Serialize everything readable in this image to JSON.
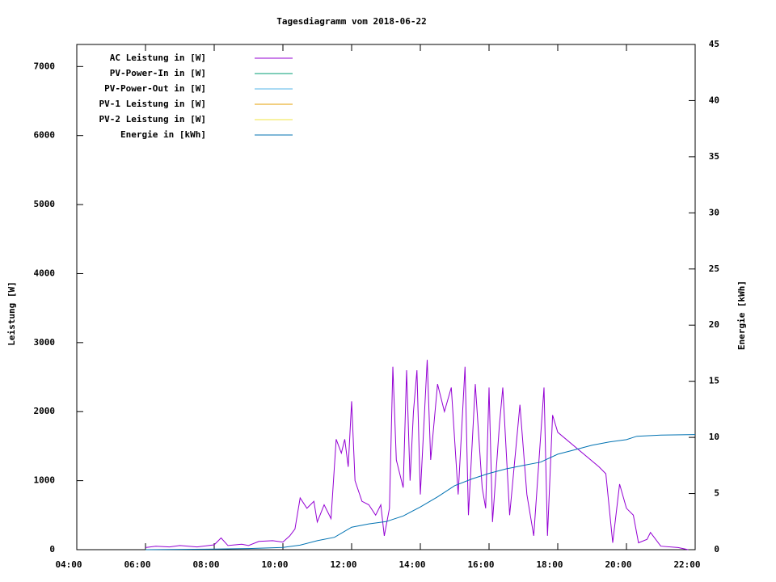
{
  "chart_data": {
    "type": "line",
    "title": "Tagesdiagramm vom 2018-06-22",
    "y_label": "Leistung [W]",
    "y2_label": "Energie [kWh]",
    "xlim": [
      4,
      22
    ],
    "xticks": [
      {
        "value": 4,
        "label": "04:00"
      },
      {
        "value": 6,
        "label": "06:00"
      },
      {
        "value": 8,
        "label": "08:00"
      },
      {
        "value": 10,
        "label": "10:00"
      },
      {
        "value": 12,
        "label": "12:00"
      },
      {
        "value": 14,
        "label": "14:00"
      },
      {
        "value": 16,
        "label": "16:00"
      },
      {
        "value": 18,
        "label": "18:00"
      },
      {
        "value": 20,
        "label": "20:00"
      },
      {
        "value": 22,
        "label": "22:00"
      }
    ],
    "ylim": [
      0,
      7320
    ],
    "yticks": [
      0,
      1000,
      2000,
      3000,
      4000,
      5000,
      6000,
      7000
    ],
    "y2lim": [
      0,
      45
    ],
    "y2ticks": [
      0,
      5,
      10,
      15,
      20,
      25,
      30,
      35,
      40,
      45
    ],
    "legend": "top-left",
    "series": [
      {
        "name": "AC Leistung in [W]",
        "color": "#9400d3",
        "x": [
          6.0,
          6.3,
          6.7,
          7.0,
          7.5,
          8.0,
          8.2,
          8.4,
          8.8,
          9.0,
          9.3,
          9.7,
          10.0,
          10.2,
          10.35,
          10.5,
          10.7,
          10.9,
          11.0,
          11.2,
          11.4,
          11.55,
          11.7,
          11.8,
          11.9,
          12.0,
          12.1,
          12.3,
          12.5,
          12.7,
          12.85,
          12.95,
          13.1,
          13.2,
          13.3,
          13.5,
          13.6,
          13.7,
          13.8,
          13.9,
          14.0,
          14.2,
          14.3,
          14.5,
          14.7,
          14.9,
          15.1,
          15.3,
          15.4,
          15.6,
          15.8,
          15.9,
          16.0,
          16.1,
          16.3,
          16.4,
          16.6,
          16.9,
          17.1,
          17.3,
          17.6,
          17.7,
          17.85,
          18.0,
          19.2,
          19.4,
          19.6,
          19.8,
          20.0,
          20.2,
          20.35,
          20.6,
          20.7,
          21.0,
          21.5,
          21.8
        ],
        "values": [
          30,
          50,
          40,
          60,
          40,
          70,
          170,
          60,
          80,
          60,
          120,
          130,
          110,
          200,
          300,
          750,
          600,
          700,
          400,
          650,
          450,
          1600,
          1400,
          1600,
          1200,
          2150,
          1000,
          700,
          650,
          500,
          650,
          200,
          600,
          2650,
          1300,
          900,
          2600,
          1000,
          2000,
          2600,
          800,
          2750,
          1300,
          2400,
          2000,
          2350,
          800,
          2650,
          500,
          2400,
          900,
          600,
          2350,
          400,
          1800,
          2350,
          500,
          2100,
          800,
          200,
          2350,
          200,
          1950,
          1700,
          1200,
          1100,
          100,
          950,
          600,
          500,
          100,
          150,
          250,
          50,
          30,
          0
        ]
      },
      {
        "name": "PV-Power-In in [W]",
        "color": "#009e73",
        "x": [],
        "values": []
      },
      {
        "name": "PV-Power-Out in [W]",
        "color": "#56b4e9",
        "x": [],
        "values": []
      },
      {
        "name": "PV-1 Leistung in [W]",
        "color": "#e69f00",
        "x": [],
        "values": []
      },
      {
        "name": "PV-2 Leistung in [W]",
        "color": "#f0e442",
        "x": [],
        "values": []
      },
      {
        "name": "Energie in [kWh]",
        "color": "#0072b2",
        "axis": "y2",
        "x": [
          6.0,
          8.0,
          9.0,
          10.0,
          10.5,
          11.0,
          11.5,
          12.0,
          12.5,
          13.0,
          13.5,
          14.0,
          14.5,
          15.0,
          15.5,
          16.0,
          16.5,
          17.0,
          17.5,
          18.0,
          18.5,
          19.0,
          19.5,
          20.0,
          20.3,
          21.0,
          22.0
        ],
        "values": [
          0,
          0.05,
          0.1,
          0.2,
          0.4,
          0.8,
          1.1,
          2.0,
          2.3,
          2.5,
          3.0,
          3.8,
          4.7,
          5.7,
          6.3,
          6.8,
          7.2,
          7.5,
          7.8,
          8.5,
          8.9,
          9.3,
          9.6,
          9.8,
          10.1,
          10.2,
          10.25
        ]
      }
    ]
  }
}
